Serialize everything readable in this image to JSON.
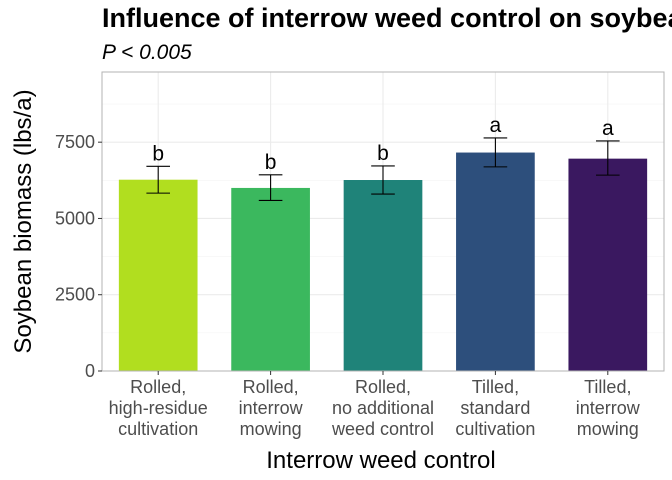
{
  "chart_data": {
    "type": "bar",
    "title": "Influence of interrow weed control on soybean biomass",
    "subtitle": "P < 0.005",
    "xlabel": "Interrow weed control",
    "ylabel": "Soybean biomass (lbs/a)",
    "ylim": [
      0,
      9800
    ],
    "yticks": [
      0,
      2500,
      5000,
      7500
    ],
    "categories": [
      "Rolled,\nhigh-residue\ncultivation",
      "Rolled,\ninterrow\nmowing",
      "Rolled,\nno additional\nweed control",
      "Tilled,\nstandard\ncultivation",
      "Tilled,\ninterrow\nmowing"
    ],
    "values": [
      6270,
      6000,
      6260,
      7160,
      6960
    ],
    "error_low": [
      5830,
      5590,
      5800,
      6690,
      6420
    ],
    "error_high": [
      6710,
      6430,
      6720,
      7640,
      7540
    ],
    "letters": [
      "b",
      "b",
      "b",
      "a",
      "a"
    ],
    "colors": [
      "#b1de1f",
      "#3bb85e",
      "#1f8379",
      "#2d4f7c",
      "#3a1860"
    ],
    "grid": true,
    "legend": "none"
  }
}
